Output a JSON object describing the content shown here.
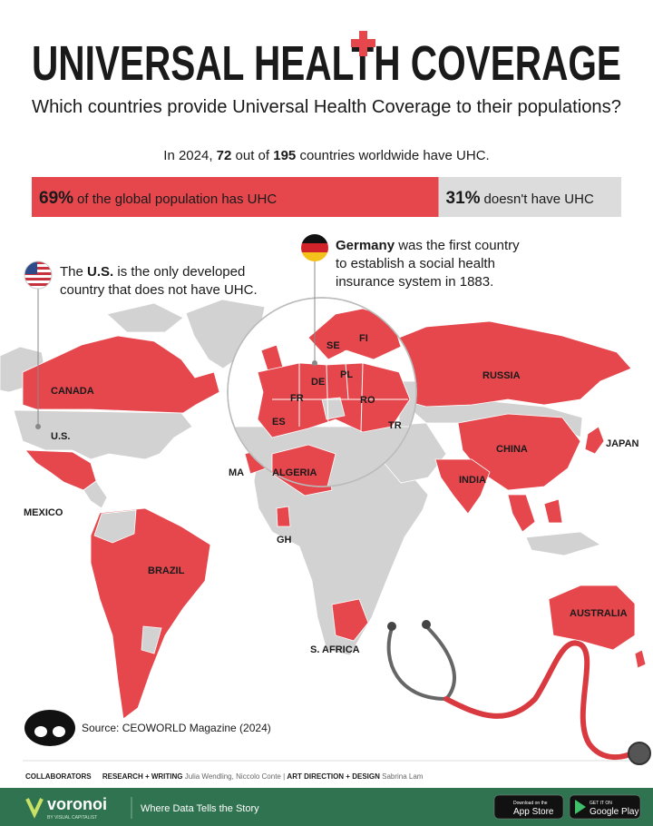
{
  "header": {
    "title": "UNIVERSAL HEALTH COVERAGE",
    "subtitle": "Which countries provide Universal Health Coverage to their populations?"
  },
  "summary": {
    "parts": [
      "In 2024,",
      "72",
      "out of",
      "195",
      "countries worldwide have UHC."
    ]
  },
  "population_bar": {
    "values": [
      69,
      31
    ],
    "value_labels": [
      "69%",
      "31%"
    ],
    "labels": [
      "of the global population has UHC",
      "doesn't have UHC"
    ],
    "colors": [
      "#e5474d",
      "#dcdcdc"
    ]
  },
  "callouts": [
    {
      "lines": [
        [
          "The",
          "U.S.",
          "is the only developed"
        ],
        [
          "country that does not have UHC."
        ]
      ]
    },
    {
      "lines": [
        [
          "Germany",
          "was the first country"
        ],
        [
          "to establish a social health"
        ],
        [
          "insurance system in 1883."
        ]
      ]
    }
  ],
  "map": {
    "labels": [
      "CANADA",
      "U.S.",
      "MEXICO",
      "BRAZIL",
      "MA",
      "ALGERIA",
      "GH",
      "S. AFRICA",
      "RUSSIA",
      "CHINA",
      "INDIA",
      "JAPAN",
      "AUSTRALIA",
      "SE",
      "FI",
      "PL",
      "DE",
      "FR",
      "RO",
      "ES",
      "TR"
    ]
  },
  "source": "Source: CEOWORLD Magazine (2024)",
  "credits": {
    "heading": "COLLABORATORS",
    "roles": [
      {
        "role": "RESEARCH + WRITING",
        "names": "Julia Wendling, Niccolo Conte"
      },
      {
        "role": "ART DIRECTION + DESIGN",
        "names": "Sabrina Lam"
      }
    ],
    "separator": "|"
  },
  "footer": {
    "brand": "voronoi",
    "brand_sub": "BY VISUAL CAPITALIST",
    "tagline": "Where Data Tells the Story",
    "app_store": [
      "Download on the",
      "App Store"
    ],
    "google_play": [
      "GET IT ON",
      "Google Play"
    ]
  }
}
